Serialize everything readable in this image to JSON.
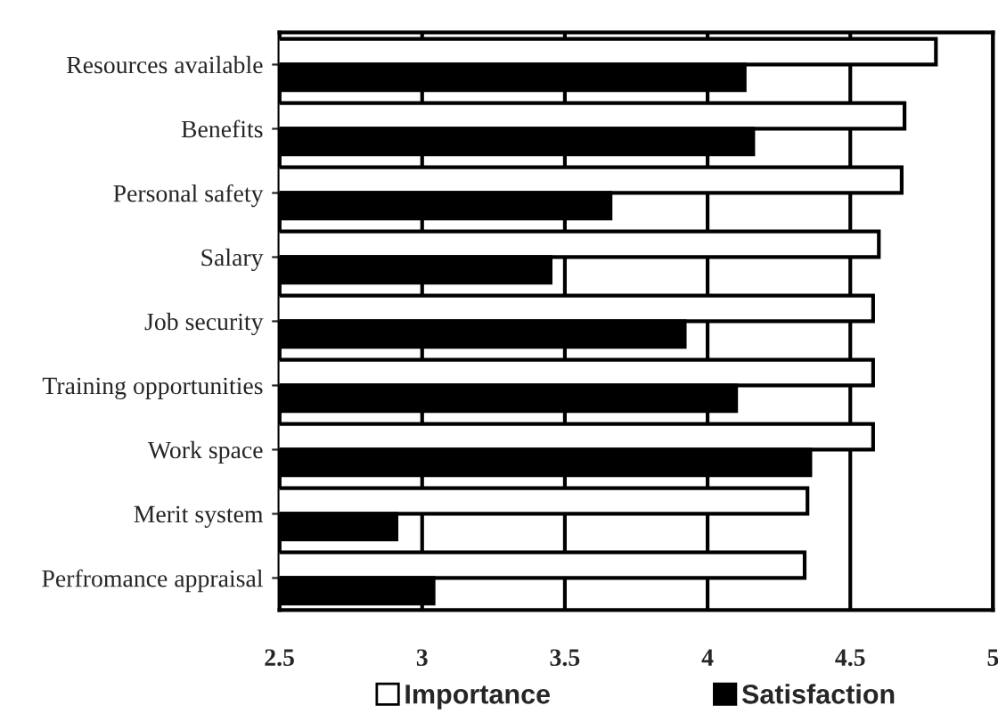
{
  "chart_data": {
    "type": "bar",
    "orientation": "horizontal",
    "categories": [
      "Resources available",
      "Benefits",
      "Personal safety",
      "Salary",
      "Job security",
      "Training opportunities",
      "Work space",
      "Merit system",
      "Perfromance appraisal"
    ],
    "series": [
      {
        "name": "Importance",
        "color": "#ffffff",
        "values": [
          4.8,
          4.69,
          4.68,
          4.6,
          4.58,
          4.58,
          4.58,
          4.35,
          4.34
        ]
      },
      {
        "name": "Satisfaction",
        "color": "#000000",
        "values": [
          4.13,
          4.16,
          3.66,
          3.45,
          3.92,
          4.1,
          4.36,
          2.91,
          3.04
        ]
      }
    ],
    "xlim": [
      2.5,
      5
    ],
    "xticks": [
      2.5,
      3,
      3.5,
      4,
      4.5,
      5
    ],
    "grid": "x",
    "legend": "bottom"
  }
}
